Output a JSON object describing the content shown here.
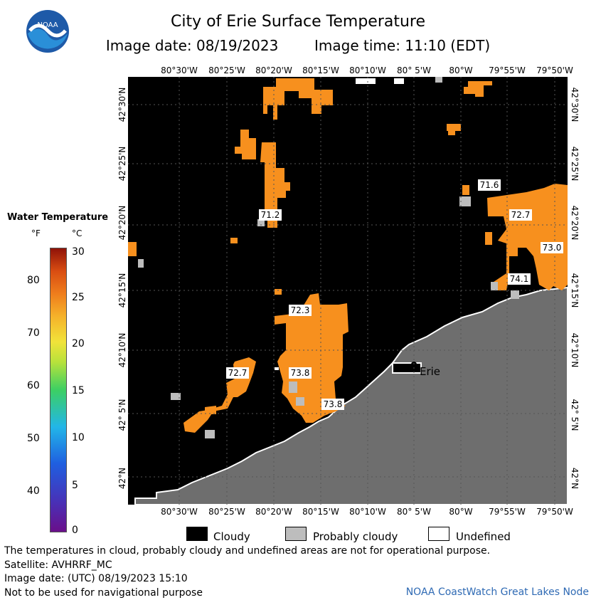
{
  "header": {
    "title": "City of Erie Surface Temperature",
    "image_date": "Image date: 08/19/2023",
    "image_time": "Image time: 11:10 (EDT)"
  },
  "logo": {
    "text": "NOAA",
    "icon": "noaa-logo-icon"
  },
  "map": {
    "lon_labels": [
      "80°30'W",
      "80°25'W",
      "80°20'W",
      "80°15'W",
      "80°10'W",
      "80° 5'W",
      "80°W",
      "79°55'W",
      "79°50'W"
    ],
    "lat_labels": [
      "42°30'N",
      "42°25'N",
      "42°20'N",
      "42°15'N",
      "42°10'N",
      "42° 5'N",
      "42°N"
    ],
    "city_label": "Erie",
    "temperature_labels": [
      "71.6",
      "71.2",
      "72.7",
      "73.0",
      "74.1",
      "72.3",
      "72.7",
      "73.8",
      "73.8"
    ],
    "colors": {
      "cloud": "#000000",
      "land": "#6e6e6e",
      "water_temp": "#f7901e",
      "probably_cloudy": "#bdbdbd",
      "grid": "#333333"
    }
  },
  "legend": {
    "title": "Water Temperature",
    "unit_f": "°F",
    "unit_c": "°C",
    "f_ticks": [
      "80",
      "70",
      "60",
      "50",
      "40"
    ],
    "c_ticks": [
      "30",
      "25",
      "20",
      "15",
      "10",
      "5",
      "0"
    ],
    "f_range": [
      32,
      86
    ],
    "c_range": [
      0,
      30
    ]
  },
  "key": {
    "cloudy": "Cloudy",
    "probably_cloudy": "Probably cloudy",
    "undefined": "Undefined"
  },
  "footer": {
    "disclaimer": "The temperatures in cloud, probably cloudy and undefined areas are not for operational purpose.",
    "satellite": "Satellite: AVHRRF_MC",
    "utc_date": "Image date: (UTC) 08/19/2023  15:10",
    "navigation": "Not to be used for navigational purpose",
    "credit": "NOAA CoastWatch Great Lakes Node"
  }
}
